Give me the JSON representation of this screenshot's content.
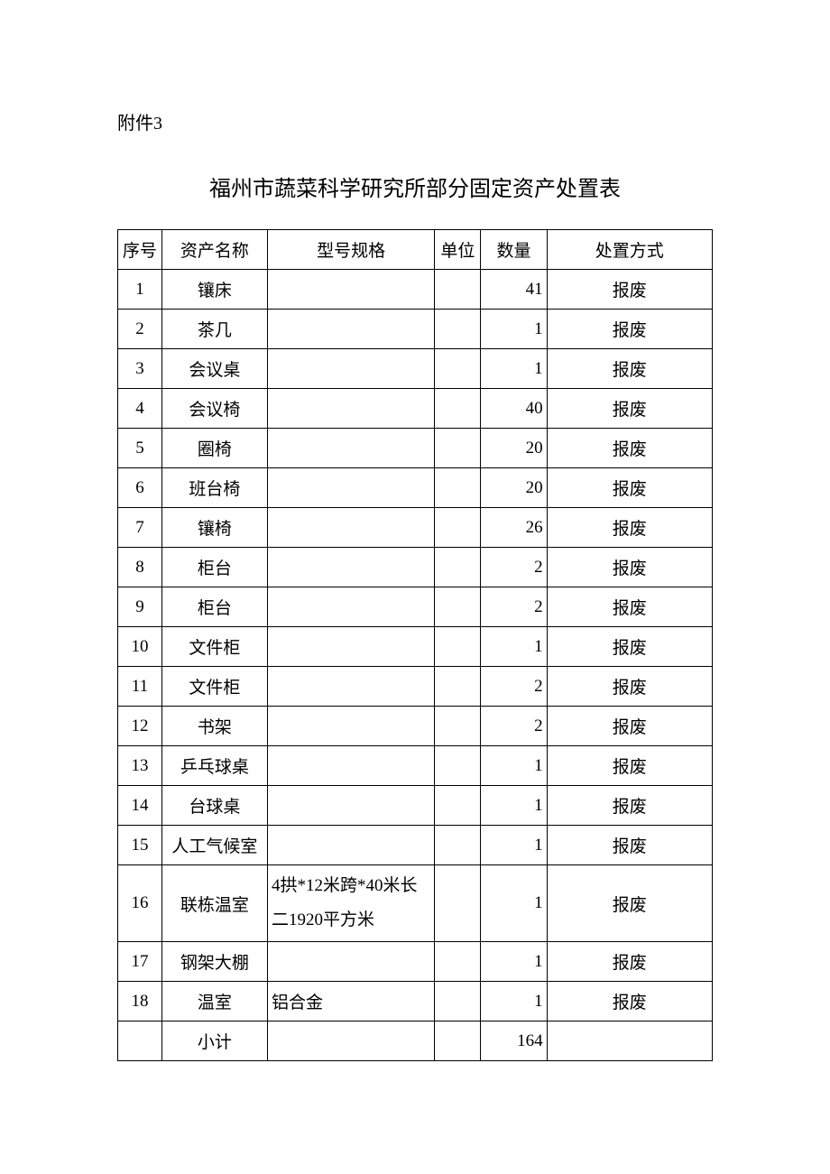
{
  "attachment_label": "附件3",
  "title": "福州市蔬菜科学研究所部分固定资产处置表",
  "columns": [
    "序号",
    "资产名称",
    "型号规格",
    "单位",
    "数量",
    "处置方式"
  ],
  "rows": [
    {
      "seq": "1",
      "name": "镶床",
      "spec": "",
      "unit": "",
      "qty": "41",
      "disp": "报废"
    },
    {
      "seq": "2",
      "name": "茶几",
      "spec": "",
      "unit": "",
      "qty": "1",
      "disp": "报废"
    },
    {
      "seq": "3",
      "name": "会议桌",
      "spec": "",
      "unit": "",
      "qty": "1",
      "disp": "报废"
    },
    {
      "seq": "4",
      "name": "会议椅",
      "spec": "",
      "unit": "",
      "qty": "40",
      "disp": "报废"
    },
    {
      "seq": "5",
      "name": "圈椅",
      "spec": "",
      "unit": "",
      "qty": "20",
      "disp": "报废"
    },
    {
      "seq": "6",
      "name": "班台椅",
      "spec": "",
      "unit": "",
      "qty": "20",
      "disp": "报废"
    },
    {
      "seq": "7",
      "name": "镶椅",
      "spec": "",
      "unit": "",
      "qty": "26",
      "disp": "报废"
    },
    {
      "seq": "8",
      "name": "柜台",
      "spec": "",
      "unit": "",
      "qty": "2",
      "disp": "报废"
    },
    {
      "seq": "9",
      "name": "柜台",
      "spec": "",
      "unit": "",
      "qty": "2",
      "disp": "报废"
    },
    {
      "seq": "10",
      "name": "文件柜",
      "spec": "",
      "unit": "",
      "qty": "1",
      "disp": "报废"
    },
    {
      "seq": "11",
      "name": "文件柜",
      "spec": "",
      "unit": "",
      "qty": "2",
      "disp": "报废"
    },
    {
      "seq": "12",
      "name": "书架",
      "spec": "",
      "unit": "",
      "qty": "2",
      "disp": "报废"
    },
    {
      "seq": "13",
      "name": "乒乓球桌",
      "spec": "",
      "unit": "",
      "qty": "1",
      "disp": "报废"
    },
    {
      "seq": "14",
      "name": "台球桌",
      "spec": "",
      "unit": "",
      "qty": "1",
      "disp": "报废"
    },
    {
      "seq": "15",
      "name": "人工气候室",
      "spec": "",
      "unit": "",
      "qty": "1",
      "disp": "报废"
    },
    {
      "seq": "16",
      "name": "联栋温室",
      "spec": "4拱*12米跨*40米长二1920平方米",
      "unit": "",
      "qty": "1",
      "disp": "报废",
      "tall": true
    },
    {
      "seq": "17",
      "name": "钢架大棚",
      "spec": "",
      "unit": "",
      "qty": "1",
      "disp": "报废"
    },
    {
      "seq": "18",
      "name": "温室",
      "spec": "铝合金",
      "unit": "",
      "qty": "1",
      "disp": "报废"
    },
    {
      "seq": "",
      "name": "小计",
      "spec": "",
      "unit": "",
      "qty": "164",
      "disp": ""
    }
  ]
}
